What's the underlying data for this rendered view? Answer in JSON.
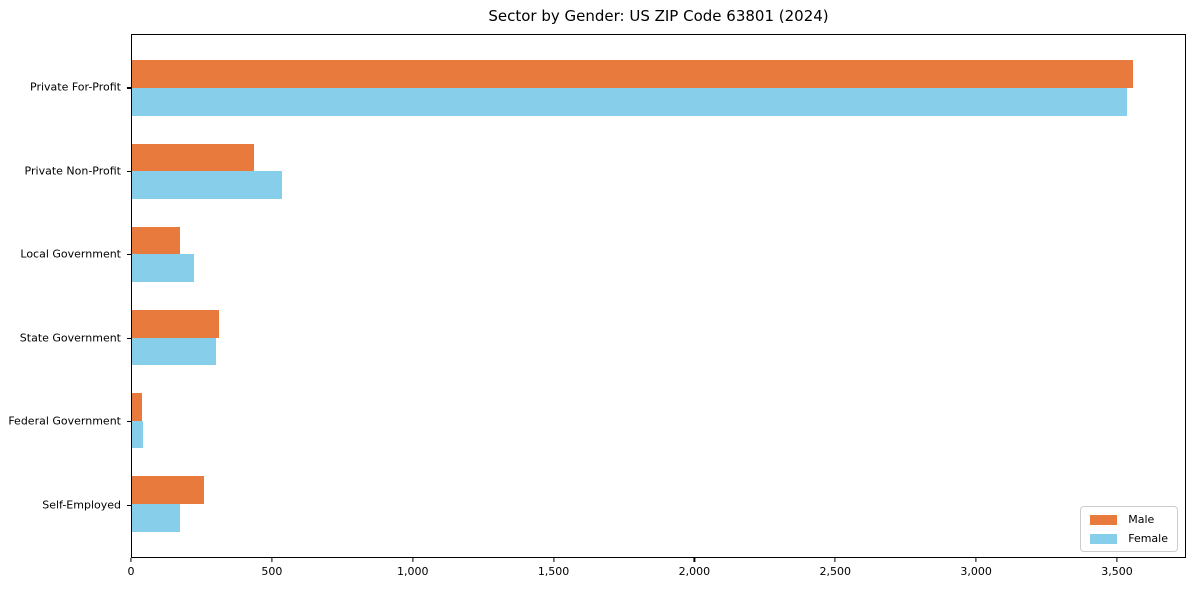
{
  "chart_data": {
    "type": "bar",
    "orientation": "horizontal",
    "title": "Sector by Gender: US ZIP Code 63801 (2024)",
    "categories": [
      "Private For-Profit",
      "Private Non-Profit",
      "Local Government",
      "State Government",
      "Federal Government",
      "Self-Employed"
    ],
    "series": [
      {
        "name": "Male",
        "color": "#e87a3e",
        "values": [
          3560,
          435,
          170,
          310,
          35,
          255
        ]
      },
      {
        "name": "Female",
        "color": "#87ceeb",
        "values": [
          3540,
          535,
          220,
          300,
          40,
          170
        ]
      }
    ],
    "xlabel": "",
    "ylabel": "",
    "xlim": [
      0,
      3745
    ],
    "x_ticks": [
      0,
      500,
      1000,
      1500,
      2000,
      2500,
      3000,
      3500
    ],
    "x_tick_labels": [
      "0",
      "500",
      "1,000",
      "1,500",
      "2,000",
      "2,500",
      "3,000",
      "3,500"
    ],
    "grid": false,
    "legend": {
      "position": "lower right",
      "entries": [
        "Male",
        "Female"
      ]
    },
    "colors": {
      "male": "#e87a3e",
      "female": "#87ceeb",
      "frame": "#000000",
      "background": "#ffffff",
      "legend_border": "#cccccc"
    }
  }
}
